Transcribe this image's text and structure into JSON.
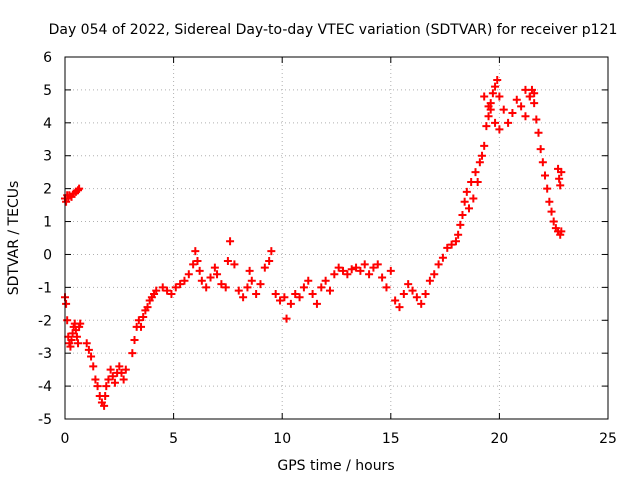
{
  "chart_data": {
    "type": "scatter",
    "title": "Day 054 of 2022, Sidereal Day-to-day VTEC variation (SDTVAR) for receiver p121",
    "xlabel": "GPS time / hours",
    "ylabel": "SDTVAR / TECUs",
    "xlim": [
      0,
      25
    ],
    "ylim": [
      -5,
      6
    ],
    "x_ticks": [
      "0",
      "5",
      "10",
      "15",
      "20",
      "25"
    ],
    "y_ticks": [
      "-5",
      "-4",
      "-3",
      "-2",
      "-1",
      "0",
      "1",
      "2",
      "3",
      "4",
      "5",
      "6"
    ],
    "grid": true,
    "marker": "+",
    "series": [
      {
        "name": "SDTVAR p121",
        "color": "#ff0000",
        "x": [
          0.0,
          0.05,
          0.1,
          0.15,
          0.2,
          0.25,
          0.3,
          0.35,
          0.4,
          0.45,
          0.5,
          0.55,
          0.6,
          0.65,
          0.7,
          0.0,
          0.05,
          0.1,
          0.15,
          0.2,
          0.3,
          0.4,
          0.5,
          0.6,
          0.65,
          1.0,
          1.1,
          1.2,
          1.3,
          1.4,
          1.5,
          1.6,
          1.7,
          1.8,
          1.85,
          1.9,
          2.0,
          2.1,
          2.2,
          2.3,
          2.4,
          2.5,
          2.6,
          2.7,
          2.8,
          3.1,
          3.2,
          3.3,
          3.4,
          3.5,
          3.6,
          3.7,
          3.8,
          3.9,
          4.0,
          4.1,
          4.2,
          4.5,
          4.7,
          4.9,
          5.1,
          5.3,
          5.5,
          5.7,
          5.9,
          6.0,
          6.1,
          6.2,
          6.3,
          6.5,
          6.7,
          6.9,
          7.0,
          7.2,
          7.4,
          7.5,
          7.6,
          7.8,
          8.0,
          8.2,
          8.4,
          8.5,
          8.6,
          8.8,
          9.0,
          9.2,
          9.4,
          9.5,
          9.7,
          9.9,
          10.1,
          10.2,
          10.4,
          10.6,
          10.8,
          11.0,
          11.2,
          11.4,
          11.6,
          11.8,
          12.0,
          12.2,
          12.4,
          12.6,
          12.8,
          13.0,
          13.2,
          13.4,
          13.6,
          13.8,
          14.0,
          14.2,
          14.4,
          14.6,
          14.8,
          15.0,
          15.2,
          15.4,
          15.6,
          15.8,
          16.0,
          16.2,
          16.4,
          16.6,
          16.8,
          17.0,
          17.2,
          17.4,
          17.6,
          17.8,
          18.0,
          18.1,
          18.2,
          18.3,
          18.4,
          18.5,
          18.6,
          18.7,
          18.8,
          18.9,
          19.0,
          19.1,
          19.2,
          19.3,
          19.4,
          19.5,
          19.6,
          19.7,
          19.8,
          19.9,
          20.0,
          20.2,
          20.4,
          20.6,
          20.8,
          21.0,
          21.2,
          21.4,
          21.5,
          21.6,
          21.7,
          21.8,
          21.9,
          22.0,
          22.1,
          22.2,
          22.3,
          22.4,
          22.5,
          22.6,
          22.7,
          22.8,
          22.85,
          22.7,
          22.75,
          22.8,
          22.85,
          19.6,
          19.8,
          20.0,
          19.3,
          19.5,
          21.2,
          21.4,
          21.6
        ],
        "y": [
          -1.3,
          -1.5,
          -2.0,
          -2.5,
          -2.7,
          -2.8,
          -2.6,
          -2.4,
          -2.2,
          -2.1,
          -2.3,
          -2.5,
          -2.7,
          -2.2,
          -2.1,
          1.7,
          1.6,
          1.8,
          1.7,
          1.8,
          1.75,
          1.85,
          1.9,
          1.95,
          2.0,
          -2.7,
          -2.9,
          -3.1,
          -3.4,
          -3.8,
          -4.0,
          -4.3,
          -4.5,
          -4.6,
          -4.3,
          -4.0,
          -3.8,
          -3.5,
          -3.7,
          -3.9,
          -3.6,
          -3.4,
          -3.6,
          -3.8,
          -3.5,
          -3.0,
          -2.6,
          -2.2,
          -2.0,
          -2.2,
          -1.9,
          -1.7,
          -1.6,
          -1.4,
          -1.3,
          -1.2,
          -1.1,
          -1.0,
          -1.1,
          -1.2,
          -1.0,
          -0.9,
          -0.8,
          -0.6,
          -0.3,
          0.1,
          -0.2,
          -0.5,
          -0.8,
          -1.0,
          -0.7,
          -0.4,
          -0.6,
          -0.9,
          -1.0,
          -0.2,
          0.4,
          -0.3,
          -1.1,
          -1.3,
          -1.0,
          -0.5,
          -0.8,
          -1.2,
          -0.9,
          -0.4,
          -0.2,
          0.1,
          -1.2,
          -1.4,
          -1.3,
          -1.95,
          -1.5,
          -1.2,
          -1.3,
          -1.0,
          -0.8,
          -1.2,
          -1.5,
          -1.0,
          -0.8,
          -1.1,
          -0.6,
          -0.4,
          -0.5,
          -0.6,
          -0.45,
          -0.4,
          -0.5,
          -0.3,
          -0.6,
          -0.4,
          -0.3,
          -0.7,
          -1.0,
          -0.5,
          -1.4,
          -1.6,
          -1.2,
          -0.9,
          -1.1,
          -1.3,
          -1.5,
          -1.2,
          -0.8,
          -0.6,
          -0.3,
          -0.1,
          0.2,
          0.3,
          0.4,
          0.6,
          0.9,
          1.2,
          1.6,
          1.9,
          1.4,
          2.2,
          1.7,
          2.5,
          2.2,
          2.8,
          3.0,
          3.3,
          3.9,
          4.2,
          4.6,
          4.9,
          5.1,
          5.3,
          4.8,
          4.4,
          4.0,
          4.3,
          4.7,
          4.5,
          4.2,
          4.8,
          5.0,
          4.6,
          4.1,
          3.7,
          3.2,
          2.8,
          2.4,
          2.0,
          1.6,
          1.3,
          1.0,
          0.8,
          0.7,
          0.6,
          0.7,
          2.6,
          2.3,
          2.1,
          2.5,
          4.4,
          4.0,
          3.8,
          4.8,
          4.5,
          5.0,
          4.8,
          4.9
        ]
      }
    ]
  }
}
